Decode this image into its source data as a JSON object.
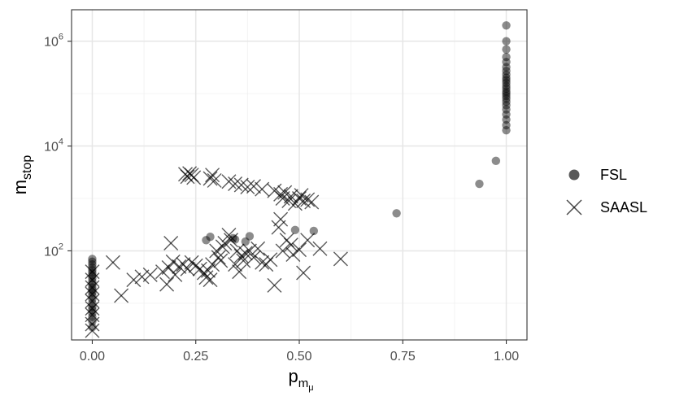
{
  "chart_data": {
    "type": "scatter",
    "title": "",
    "xlabel": {
      "base": "p",
      "sub": "m",
      "subsub": "μ"
    },
    "ylabel": {
      "base": "m",
      "sub": "stop"
    },
    "xlim": [
      -0.05,
      1.05
    ],
    "ylim_log10": [
      0.3,
      6.6
    ],
    "y_scale": "log10",
    "x_ticks": [
      {
        "value": 0,
        "label": "0.00"
      },
      {
        "value": 0.25,
        "label": "0.25"
      },
      {
        "value": 0.5,
        "label": "0.50"
      },
      {
        "value": 0.75,
        "label": "0.75"
      },
      {
        "value": 1,
        "label": "1.00"
      }
    ],
    "y_ticks": [
      {
        "value": 100,
        "base": "10",
        "exp": "2"
      },
      {
        "value": 10000,
        "base": "10",
        "exp": "4"
      },
      {
        "value": 1000000,
        "base": "10",
        "exp": "6"
      }
    ],
    "grid": true,
    "legend": {
      "placement": "right"
    },
    "series": [
      {
        "name": "FSL",
        "marker": "circle",
        "color": "#000000",
        "points": [
          [
            0,
            3.5
          ],
          [
            0,
            4.5
          ],
          [
            0,
            5.5
          ],
          [
            0,
            6.5
          ],
          [
            0,
            7.5
          ],
          [
            0,
            8.5
          ],
          [
            0,
            10
          ],
          [
            0,
            12
          ],
          [
            0,
            14
          ],
          [
            0,
            16
          ],
          [
            0,
            18
          ],
          [
            0,
            20
          ],
          [
            0,
            23
          ],
          [
            0,
            26
          ],
          [
            0,
            30
          ],
          [
            0,
            34
          ],
          [
            0,
            38
          ],
          [
            0,
            43
          ],
          [
            0,
            48
          ],
          [
            0,
            55
          ],
          [
            0,
            62
          ],
          [
            0,
            70
          ],
          [
            0.275,
            160
          ],
          [
            0.285,
            185
          ],
          [
            0.34,
            175
          ],
          [
            0.345,
            165
          ],
          [
            0.37,
            150
          ],
          [
            0.38,
            190
          ],
          [
            0.49,
            250
          ],
          [
            0.535,
            240
          ],
          [
            0.735,
            520
          ],
          [
            0.935,
            1900
          ],
          [
            0.975,
            5200
          ],
          [
            1,
            20000
          ],
          [
            1,
            25000
          ],
          [
            1,
            32000
          ],
          [
            1,
            40000
          ],
          [
            1,
            50000
          ],
          [
            1,
            60000
          ],
          [
            1,
            70000
          ],
          [
            1,
            80000
          ],
          [
            1,
            90000
          ],
          [
            1,
            100000
          ],
          [
            1,
            110000
          ],
          [
            1,
            125000
          ],
          [
            1,
            140000
          ],
          [
            1,
            160000
          ],
          [
            1,
            180000
          ],
          [
            1,
            200000
          ],
          [
            1,
            230000
          ],
          [
            1,
            270000
          ],
          [
            1,
            320000
          ],
          [
            1,
            400000
          ],
          [
            1,
            500000
          ],
          [
            1,
            700000
          ],
          [
            1,
            1000000
          ],
          [
            1,
            2000000
          ]
        ]
      },
      {
        "name": "SAASL",
        "marker": "x",
        "color": "#000000",
        "points": [
          [
            0,
            3
          ],
          [
            0,
            4
          ],
          [
            0,
            6
          ],
          [
            0,
            8
          ],
          [
            0,
            11
          ],
          [
            0,
            15
          ],
          [
            0,
            20
          ],
          [
            0,
            28
          ],
          [
            0,
            40
          ],
          [
            0.05,
            60
          ],
          [
            0.07,
            14
          ],
          [
            0.1,
            28
          ],
          [
            0.12,
            32
          ],
          [
            0.14,
            35
          ],
          [
            0.17,
            40
          ],
          [
            0.18,
            23
          ],
          [
            0.185,
            48
          ],
          [
            0.19,
            140
          ],
          [
            0.195,
            62
          ],
          [
            0.2,
            35
          ],
          [
            0.21,
            50
          ],
          [
            0.22,
            55
          ],
          [
            0.23,
            45
          ],
          [
            0.24,
            60
          ],
          [
            0.25,
            52
          ],
          [
            0.26,
            45
          ],
          [
            0.27,
            38
          ],
          [
            0.275,
            31
          ],
          [
            0.28,
            42
          ],
          [
            0.285,
            28
          ],
          [
            0.29,
            55
          ],
          [
            0.3,
            100
          ],
          [
            0.305,
            75
          ],
          [
            0.31,
            65
          ],
          [
            0.315,
            120
          ],
          [
            0.32,
            140
          ],
          [
            0.33,
            200
          ],
          [
            0.335,
            160
          ],
          [
            0.345,
            55
          ],
          [
            0.35,
            100
          ],
          [
            0.355,
            40
          ],
          [
            0.36,
            80
          ],
          [
            0.365,
            65
          ],
          [
            0.37,
            90
          ],
          [
            0.38,
            100
          ],
          [
            0.39,
            75
          ],
          [
            0.4,
            110
          ],
          [
            0.41,
            60
          ],
          [
            0.42,
            55
          ],
          [
            0.43,
            68
          ],
          [
            0.44,
            22
          ],
          [
            0.45,
            280
          ],
          [
            0.455,
            400
          ],
          [
            0.46,
            100
          ],
          [
            0.47,
            160
          ],
          [
            0.48,
            130
          ],
          [
            0.485,
            85
          ],
          [
            0.5,
            105
          ],
          [
            0.51,
            38
          ],
          [
            0.52,
            160
          ],
          [
            0.55,
            110
          ],
          [
            0.6,
            70
          ],
          [
            0.225,
            2900
          ],
          [
            0.23,
            2600
          ],
          [
            0.235,
            3000
          ],
          [
            0.24,
            2800
          ],
          [
            0.245,
            2500
          ],
          [
            0.285,
            2400
          ],
          [
            0.29,
            2800
          ],
          [
            0.295,
            2200
          ],
          [
            0.33,
            2100
          ],
          [
            0.345,
            1900
          ],
          [
            0.36,
            1800
          ],
          [
            0.375,
            1650
          ],
          [
            0.39,
            1700
          ],
          [
            0.41,
            1500
          ],
          [
            0.44,
            1400
          ],
          [
            0.455,
            1200
          ],
          [
            0.46,
            1000
          ],
          [
            0.465,
            1300
          ],
          [
            0.475,
            900
          ],
          [
            0.48,
            1100
          ],
          [
            0.49,
            800
          ],
          [
            0.5,
            1000
          ],
          [
            0.505,
            1150
          ],
          [
            0.51,
            900
          ],
          [
            0.52,
            950
          ],
          [
            0.53,
            850
          ]
        ]
      }
    ]
  }
}
